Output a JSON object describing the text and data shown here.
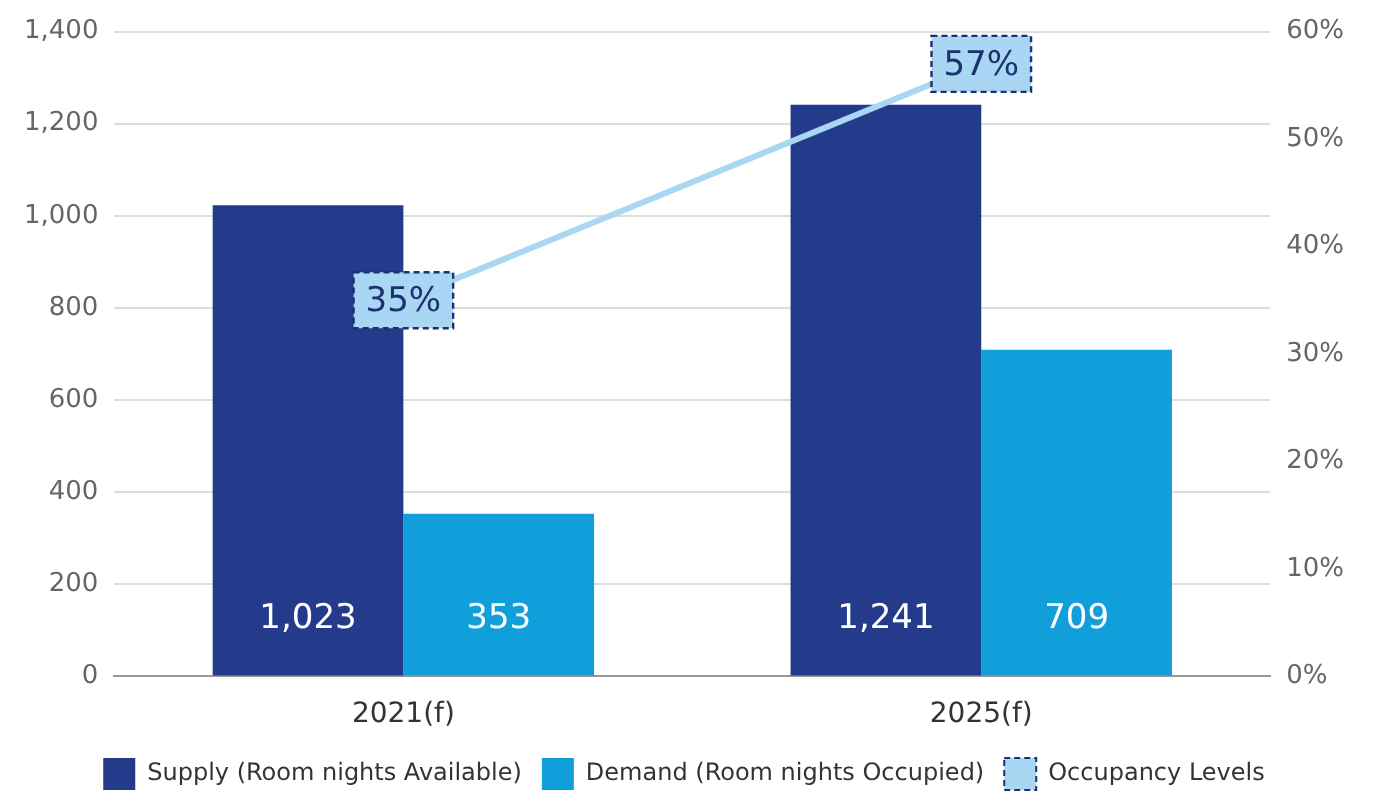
{
  "chart_data": {
    "type": "bar",
    "categories": [
      "2021(f)",
      "2025(f)"
    ],
    "series": [
      {
        "name": "Supply (Room nights Available)",
        "color": "#243b8c",
        "values": [
          1023,
          1241
        ],
        "value_labels": [
          "1,023",
          "1,241"
        ]
      },
      {
        "name": "Demand (Room nights Occupied)",
        "color": "#109fdb",
        "values": [
          353,
          709
        ],
        "value_labels": [
          "353",
          "709"
        ]
      },
      {
        "name": "Occupancy Levels",
        "type": "line",
        "axis": "y2",
        "color": "#a9d6f3",
        "values": [
          35,
          57
        ],
        "value_labels": [
          "35%",
          "57%"
        ]
      }
    ],
    "ylim": [
      0,
      1400
    ],
    "yticks": [
      0,
      200,
      400,
      600,
      800,
      {
        "value": 1000,
        "label": "1,000"
      },
      {
        "value": 1200,
        "label": "1,200"
      },
      {
        "value": 1400,
        "label": "1,400"
      }
    ],
    "y2lim": [
      0,
      60
    ],
    "y2ticks": [
      {
        "value": 0,
        "label": "0%"
      },
      {
        "value": 10,
        "label": "10%"
      },
      {
        "value": 20,
        "label": "20%"
      },
      {
        "value": 30,
        "label": "30%"
      },
      {
        "value": 40,
        "label": "40%"
      },
      {
        "value": 50,
        "label": "50%"
      },
      {
        "value": 60,
        "label": "60%"
      }
    ],
    "grid": "y",
    "legend": "bottom"
  }
}
